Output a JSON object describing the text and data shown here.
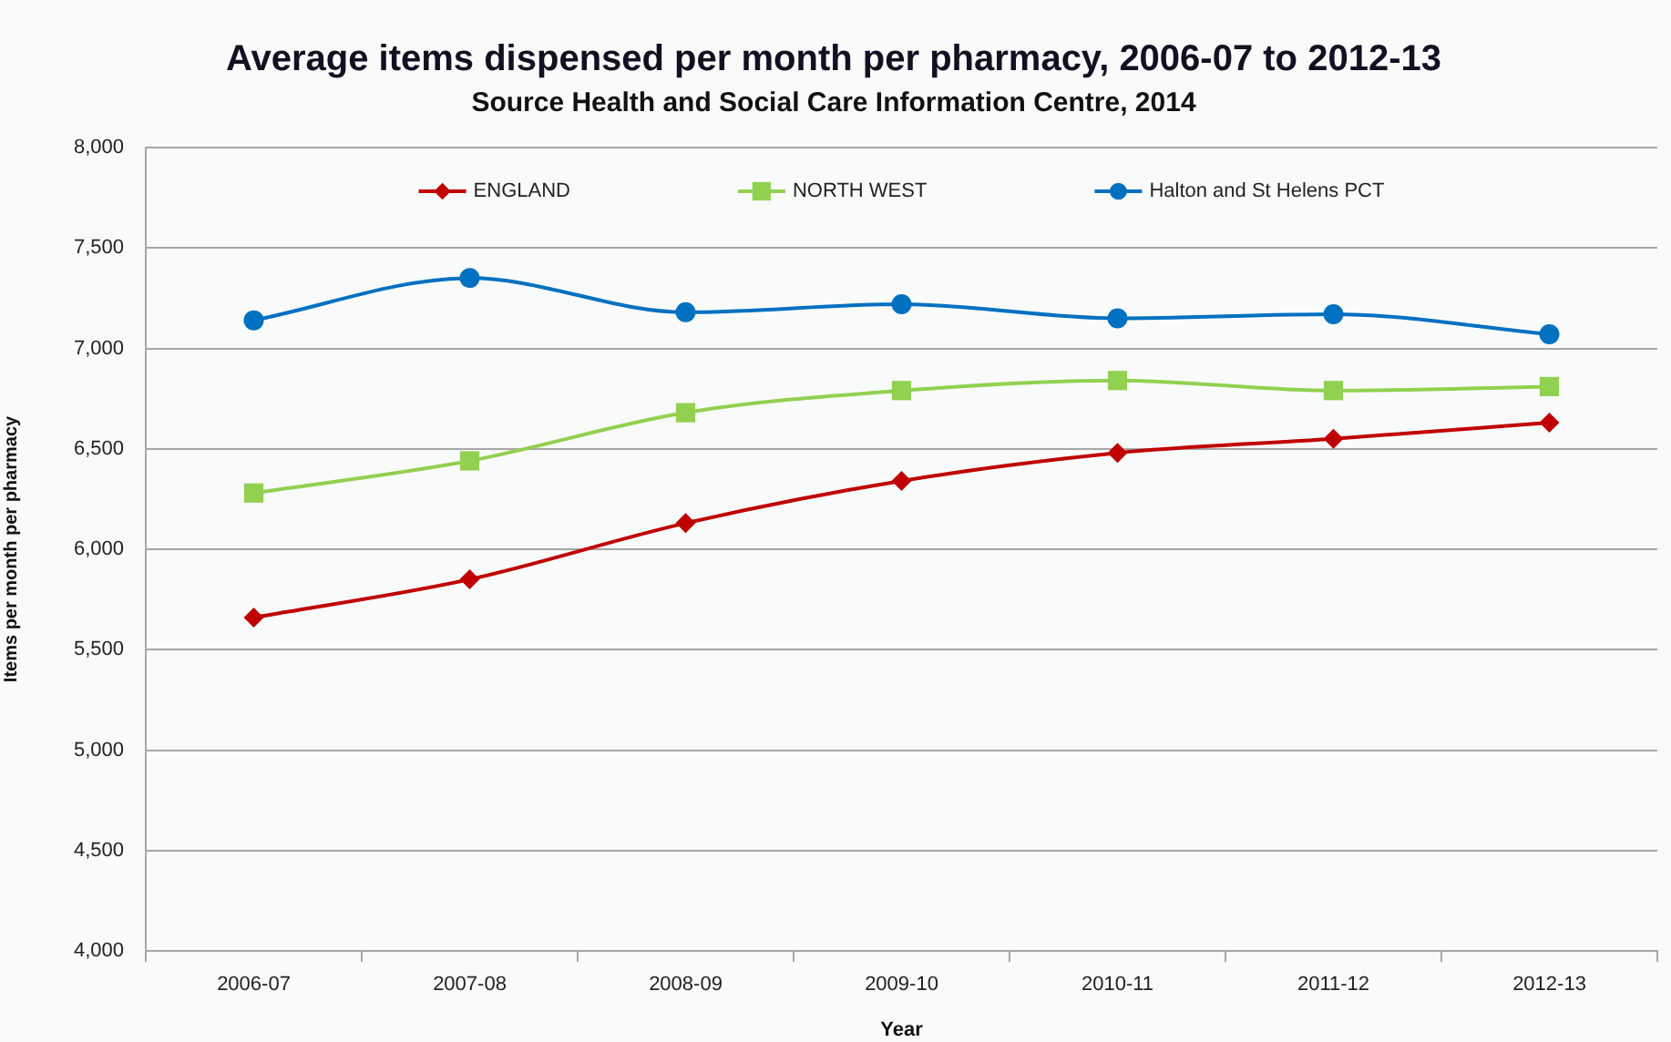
{
  "chart_data": {
    "type": "line",
    "title": "Average items dispensed per month per pharmacy, 2006-07 to 2012-13",
    "subtitle": "Source Health and Social Care Information Centre, 2014",
    "xlabel": "Year",
    "ylabel": "Items per month per pharmacy",
    "categories": [
      "2006-07",
      "2007-08",
      "2008-09",
      "2009-10",
      "2010-11",
      "2011-12",
      "2012-13"
    ],
    "series": [
      {
        "name": "ENGLAND",
        "color": "#c00000",
        "marker": "diamond",
        "values": [
          5660,
          5850,
          6130,
          6340,
          6480,
          6550,
          6630
        ]
      },
      {
        "name": "NORTH WEST",
        "color": "#92d050",
        "marker": "square",
        "values": [
          6280,
          6440,
          6680,
          6790,
          6840,
          6790,
          6810
        ]
      },
      {
        "name": "Halton and St Helens PCT",
        "color": "#0070c0",
        "marker": "circle",
        "values": [
          7140,
          7350,
          7180,
          7220,
          7150,
          7170,
          7070
        ]
      }
    ],
    "ylim": [
      4000,
      8000
    ],
    "yticks": [
      {
        "value": 4000,
        "label": "4,000"
      },
      {
        "value": 4500,
        "label": "4,500"
      },
      {
        "value": 5000,
        "label": "5,000"
      },
      {
        "value": 5500,
        "label": "5,500"
      },
      {
        "value": 6000,
        "label": "6,000"
      },
      {
        "value": 6500,
        "label": "6,500"
      },
      {
        "value": 7000,
        "label": "7,000"
      },
      {
        "value": 7500,
        "label": "7,500"
      },
      {
        "value": 8000,
        "label": "8,000"
      }
    ],
    "grid": "y",
    "legend": "top",
    "line_style": "solid"
  }
}
